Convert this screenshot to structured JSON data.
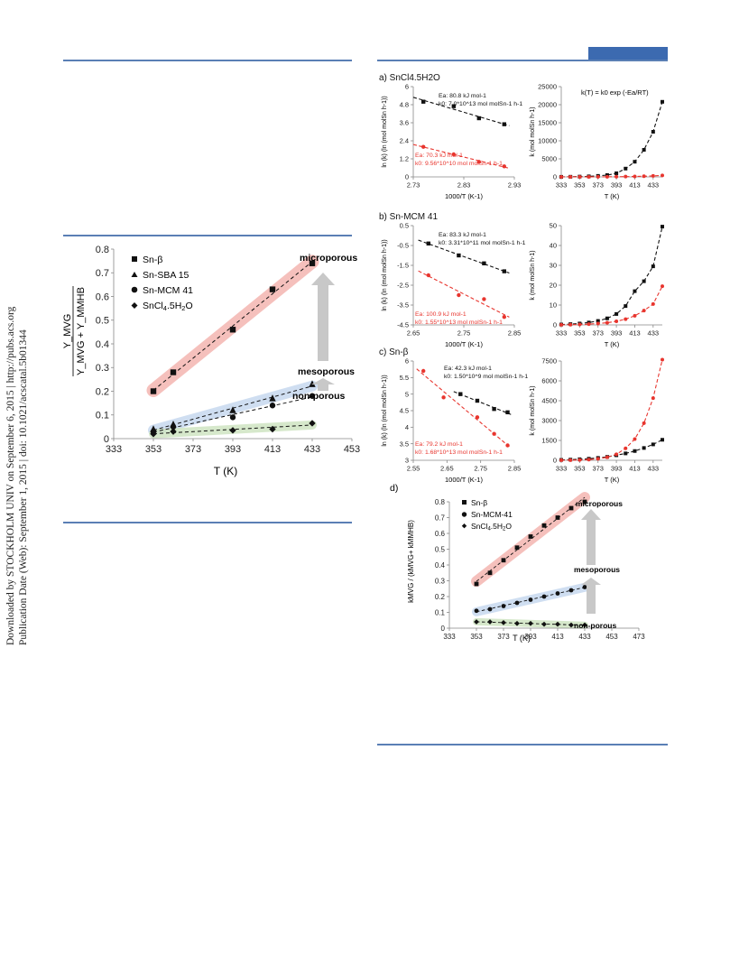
{
  "sidebar": {
    "line1": "Downloaded by STOCKHOLM UNIV on September 6, 2015 | http://pubs.acs.org",
    "line2": "Publication Date (Web): September 1, 2015 | doi: 10.1021/acscatal.5b01344"
  },
  "colors": {
    "rule": "#5a7fb5",
    "tab": "#3c6ab0",
    "red": "#e8352e",
    "black": "#111111"
  },
  "left_figure": {
    "ylabel_num": "Y_MVG",
    "ylabel_den": "Y_MVG + Y_MMHB",
    "xlabel": "T (K)",
    "yticks": [
      "0",
      "0.1",
      "0.2",
      "0.3",
      "0.4",
      "0.5",
      "0.6",
      "0.7",
      "0.8"
    ],
    "xticks": [
      "333",
      "353",
      "373",
      "393",
      "413",
      "433",
      "453"
    ],
    "legend": [
      "Sn-β",
      "Sn-SBA 15",
      "Sn-MCM 41",
      "SnCl4.5H2O"
    ],
    "labels": {
      "micro": "microporous",
      "meso": "mesoporous",
      "non": "non-porous"
    }
  },
  "panels": {
    "a": {
      "title": "a) SnCl4.5H2O",
      "ln_ylabel": "ln (k) (ln (mol molSn h-1))",
      "ln_xlabel": "1000/T (K-1)",
      "ln_yticks": [
        "0",
        "1.2",
        "2.4",
        "3.6",
        "4.8",
        "6"
      ],
      "ln_xticks": [
        "2.73",
        "2.83",
        "2.93"
      ],
      "ann_black_1": "Ea: 80.8 kJ mol-1",
      "ann_black_2": "k0: 7.0*10^13 mol molSn-1 h-1",
      "ann_red_1": "Ea: 70.3 kJ mol-1",
      "ann_red_2": "k0: 9.56*10^10 mol molSn-1 h-1",
      "k_ylabel": "k (mol molSn h-1)",
      "k_xlabel": "T (K)",
      "k_yticks": [
        "0",
        "5000",
        "10000",
        "15000",
        "20000",
        "25000"
      ],
      "k_xticks": [
        "333",
        "353",
        "373",
        "393",
        "413",
        "433"
      ],
      "formula": "k(T) = k0 exp (-Ea/RT)"
    },
    "b": {
      "title": "b) Sn-MCM 41",
      "ln_ylabel": "ln (k) (ln (mol molSn h-1))",
      "ln_xlabel": "1000/T (K-1)",
      "ln_yticks": [
        "-4.5",
        "-3.5",
        "-2.5",
        "-1.5",
        "-0.5",
        "0.5"
      ],
      "ln_xticks": [
        "2.65",
        "2.75",
        "2.85"
      ],
      "ann_black_1": "Ea: 83.3 kJ mol-1",
      "ann_black_2": "k0: 3.31*10^11 mol molSn-1 h-1",
      "ann_red_1": "Ea: 100.9 kJ mol-1",
      "ann_red_2": "k0: 1.55*10^13 mol molSn-1 h-1",
      "k_ylabel": "k (mol molSn h-1)",
      "k_xlabel": "T (K)",
      "k_yticks": [
        "0",
        "10",
        "20",
        "30",
        "40",
        "50"
      ],
      "k_xticks": [
        "333",
        "353",
        "373",
        "393",
        "413",
        "433"
      ]
    },
    "c": {
      "title": "c) Sn-β",
      "ln_ylabel": "ln (k) (ln (mol molSn h-1))",
      "ln_xlabel": "1000/T (K-1)",
      "ln_yticks": [
        "3",
        "3.5",
        "4",
        "4.5",
        "5",
        "5.5",
        "6"
      ],
      "ln_xticks": [
        "2.55",
        "2.65",
        "2.75",
        "2.85"
      ],
      "ann_black_1": "Ea: 42.3 kJ mol-1",
      "ann_black_2": "k0: 1.50*10^9 mol molSn-1 h-1",
      "ann_red_1": "Ea: 79.2 kJ mol-1",
      "ann_red_2": "k0: 1.68*10^13 mol molSn-1 h-1",
      "k_ylabel": "k (mol molSn h-1)",
      "k_xlabel": "T (K)",
      "k_yticks": [
        "0",
        "1500",
        "3000",
        "4500",
        "6000",
        "7500"
      ],
      "k_xticks": [
        "333",
        "353",
        "373",
        "393",
        "413",
        "433"
      ]
    },
    "d": {
      "title": "d)",
      "ylabel": "kMVG / (kMVG+ kMMHB)",
      "xlabel": "T (K)",
      "yticks": [
        "0",
        "0.1",
        "0.2",
        "0.3",
        "0.4",
        "0.5",
        "0.6",
        "0.7",
        "0.8"
      ],
      "xticks": [
        "333",
        "353",
        "373",
        "393",
        "413",
        "433",
        "453",
        "473"
      ],
      "legend": [
        "Sn-β",
        "Sn-MCM-41",
        "SnCl4.5H2O"
      ],
      "labels": {
        "micro": "microporous",
        "meso": "mesoporous",
        "non": "non-porous"
      }
    }
  },
  "chart_data": [
    {
      "type": "scatter",
      "id": "left",
      "xlabel": "T (K)",
      "ylabel": "YMVG/(YMVG+YMMHB)",
      "xlim": [
        333,
        453
      ],
      "ylim": [
        0,
        0.8
      ],
      "series": [
        {
          "name": "Sn-β",
          "marker": "square",
          "x": [
            353,
            363,
            393,
            413,
            433
          ],
          "y": [
            0.2,
            0.28,
            0.46,
            0.63,
            0.74
          ]
        },
        {
          "name": "Sn-SBA 15",
          "marker": "triangle",
          "x": [
            353,
            363,
            393,
            413,
            433
          ],
          "y": [
            0.04,
            0.06,
            0.12,
            0.17,
            0.23
          ]
        },
        {
          "name": "Sn-MCM 41",
          "marker": "circle",
          "x": [
            353,
            363,
            393,
            413,
            433
          ],
          "y": [
            0.03,
            0.05,
            0.09,
            0.14,
            0.18
          ]
        },
        {
          "name": "SnCl4.5H2O",
          "marker": "diamond",
          "x": [
            353,
            363,
            393,
            413,
            433
          ],
          "y": [
            0.02,
            0.03,
            0.035,
            0.04,
            0.065
          ]
        }
      ]
    },
    {
      "type": "scatter",
      "id": "a-ln",
      "xlim": [
        2.73,
        2.93
      ],
      "ylim": [
        0,
        6
      ],
      "series": [
        {
          "color": "black",
          "x": [
            2.75,
            2.81,
            2.86,
            2.91
          ],
          "y": [
            5.0,
            4.7,
            3.9,
            3.5
          ]
        },
        {
          "color": "red",
          "x": [
            2.75,
            2.81,
            2.86,
            2.91
          ],
          "y": [
            2.0,
            1.5,
            1.0,
            0.7
          ]
        }
      ]
    },
    {
      "type": "line",
      "id": "a-k",
      "xlim": [
        333,
        443
      ],
      "ylim": [
        0,
        25000
      ],
      "x": [
        333,
        343,
        353,
        363,
        373,
        383,
        393,
        403,
        413,
        423,
        433,
        443
      ],
      "series": [
        {
          "color": "black",
          "values": [
            20,
            40,
            80,
            150,
            280,
            500,
            1000,
            2300,
            4200,
            7500,
            12500,
            20800
          ]
        },
        {
          "color": "red",
          "values": [
            2,
            4,
            7,
            12,
            20,
            32,
            50,
            80,
            120,
            180,
            270,
            400
          ]
        }
      ]
    },
    {
      "type": "scatter",
      "id": "b-ln",
      "xlim": [
        2.65,
        2.85
      ],
      "ylim": [
        -4.5,
        0.5
      ],
      "series": [
        {
          "color": "black",
          "x": [
            2.68,
            2.74,
            2.79,
            2.83
          ],
          "y": [
            -0.4,
            -1.0,
            -1.4,
            -1.8
          ]
        },
        {
          "color": "red",
          "x": [
            2.68,
            2.74,
            2.79,
            2.83
          ],
          "y": [
            -2.0,
            -3.0,
            -3.2,
            -4.1
          ]
        }
      ]
    },
    {
      "type": "line",
      "id": "b-k",
      "xlim": [
        333,
        443
      ],
      "ylim": [
        0,
        50
      ],
      "x": [
        333,
        343,
        353,
        363,
        373,
        383,
        393,
        403,
        413,
        423,
        433,
        443
      ],
      "series": [
        {
          "color": "black",
          "values": [
            0.2,
            0.4,
            0.7,
            1.2,
            2,
            3.3,
            5.5,
            9.5,
            17,
            22,
            29.5,
            49.5
          ]
        },
        {
          "color": "red",
          "values": [
            0.05,
            0.1,
            0.2,
            0.4,
            0.7,
            1.1,
            1.8,
            2.9,
            4.6,
            7.2,
            10.5,
            19.5
          ]
        }
      ]
    },
    {
      "type": "scatter",
      "id": "c-ln",
      "xlim": [
        2.55,
        2.85
      ],
      "ylim": [
        3,
        6
      ],
      "series": [
        {
          "color": "black",
          "x": [
            2.69,
            2.74,
            2.79,
            2.83
          ],
          "y": [
            5.0,
            4.8,
            4.55,
            4.45
          ]
        },
        {
          "color": "red",
          "x": [
            2.58,
            2.64,
            2.74,
            2.79,
            2.83
          ],
          "y": [
            5.7,
            4.9,
            4.3,
            3.8,
            3.45
          ]
        }
      ]
    },
    {
      "type": "line",
      "id": "c-k",
      "xlim": [
        333,
        443
      ],
      "ylim": [
        0,
        7500
      ],
      "x": [
        333,
        343,
        353,
        363,
        373,
        383,
        393,
        403,
        413,
        423,
        433,
        443
      ],
      "series": [
        {
          "color": "black",
          "values": [
            30,
            50,
            80,
            120,
            180,
            260,
            380,
            520,
            700,
            930,
            1200,
            1550
          ]
        },
        {
          "color": "red",
          "values": [
            5,
            12,
            25,
            55,
            110,
            230,
            450,
            900,
            1600,
            2800,
            4700,
            7600
          ]
        }
      ]
    },
    {
      "type": "scatter",
      "id": "d",
      "xlabel": "T (K)",
      "xlim": [
        333,
        473
      ],
      "ylim": [
        0,
        0.8
      ],
      "series": [
        {
          "name": "Sn-β",
          "marker": "square",
          "x": [
            353,
            363,
            373,
            383,
            393,
            403,
            413,
            423,
            433
          ],
          "y": [
            0.28,
            0.35,
            0.43,
            0.51,
            0.58,
            0.65,
            0.7,
            0.76,
            0.8
          ]
        },
        {
          "name": "Sn-MCM-41",
          "marker": "circle",
          "x": [
            353,
            363,
            373,
            383,
            393,
            403,
            413,
            423,
            433
          ],
          "y": [
            0.11,
            0.12,
            0.14,
            0.16,
            0.18,
            0.2,
            0.22,
            0.24,
            0.26
          ]
        },
        {
          "name": "SnCl4.5H2O",
          "marker": "diamond",
          "x": [
            353,
            363,
            373,
            383,
            393,
            403,
            413,
            423,
            433
          ],
          "y": [
            0.04,
            0.04,
            0.035,
            0.03,
            0.03,
            0.025,
            0.025,
            0.02,
            0.02
          ]
        }
      ]
    }
  ]
}
